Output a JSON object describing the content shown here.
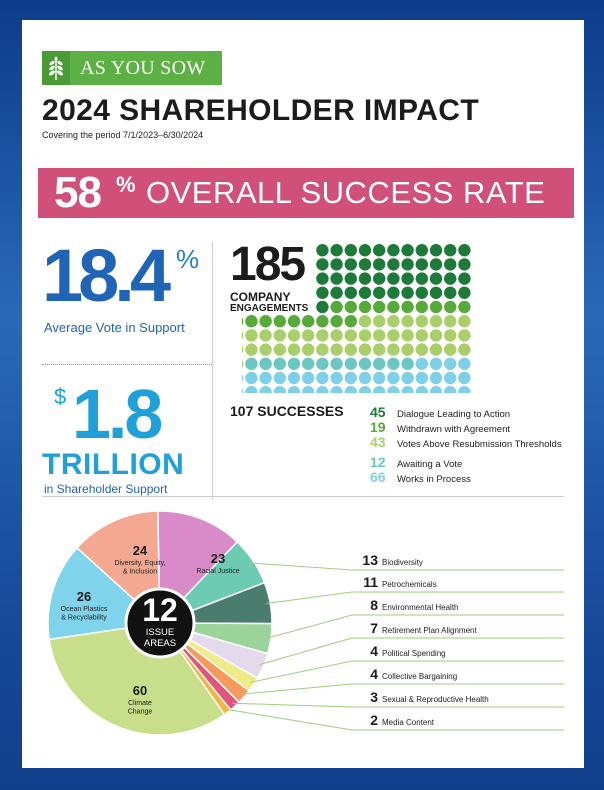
{
  "logo": {
    "text": "AS YOU SOW"
  },
  "header": {
    "title": "2024 SHAREHOLDER IMPACT",
    "subtitle": "Covering the period 7/1/2023–6/30/2024"
  },
  "banner": {
    "value": "58",
    "pct_sign": "%",
    "label": "OVERALL SUCCESS RATE"
  },
  "vote": {
    "value": "18.4",
    "pct_sign": "%",
    "label": "Average Vote in Support"
  },
  "support": {
    "dollar": "$",
    "value": "1.8",
    "unit": "TRILLION",
    "label": "in Shareholder Support"
  },
  "engagements": {
    "value": "185",
    "label1": "COMPANY",
    "label2": "ENGAGEMENTS"
  },
  "successes": {
    "label": "107 SUCCESSES"
  },
  "outcomes": [
    {
      "n": "45",
      "label": "Dialogue Leading to Action",
      "color": "#1e7a3a"
    },
    {
      "n": "19",
      "label": "Withdrawn with Agreement",
      "color": "#58a93c"
    },
    {
      "n": "43",
      "label": "Votes Above Resubmission Thresholds",
      "color": "#a9cf6a"
    },
    {
      "n": "12",
      "label": "Awaiting a Vote",
      "color": "#6cc7c2"
    },
    {
      "n": "66",
      "label": "Works in Process",
      "color": "#7fcfe9"
    }
  ],
  "pie_center": {
    "value": "12",
    "line1": "ISSUE",
    "line2": "AREAS"
  },
  "chart_data": {
    "type": "pie",
    "slices": [
      {
        "label": "Climate Change",
        "value": 60,
        "color": "#c7df8a"
      },
      {
        "label": "Ocean Plastics & Recyclability",
        "value": 26,
        "color": "#7fd4ec"
      },
      {
        "label": "Diversity, Equity, & Inclusion",
        "value": 24,
        "color": "#f4a892"
      },
      {
        "label": "Racial Justice",
        "value": 23,
        "color": "#d98ac8"
      },
      {
        "label": "Biodiversity",
        "value": 13,
        "color": "#6dcbb4"
      },
      {
        "label": "Petrochemicals",
        "value": 11,
        "color": "#4b7d6e"
      },
      {
        "label": "Environmental Health",
        "value": 8,
        "color": "#9bd49a"
      },
      {
        "label": "Retirement Plan Alignment",
        "value": 7,
        "color": "#e5daec"
      },
      {
        "label": "Political Spending",
        "value": 4,
        "color": "#f0ea88"
      },
      {
        "label": "Collective Bargaining",
        "value": 4,
        "color": "#f59a5a"
      },
      {
        "label": "Sexual & Reproductive Health",
        "value": 3,
        "color": "#e2547a"
      },
      {
        "label": "Media Content",
        "value": 2,
        "color": "#f5b441"
      }
    ],
    "inside_labels": [
      {
        "n": "60",
        "text": [
          "Climate",
          "Change"
        ]
      },
      {
        "n": "26",
        "text": [
          "Ocean Plastics",
          "& Recyclability"
        ]
      },
      {
        "n": "24",
        "text": [
          "Diversity, Equity,",
          "& Inclusion"
        ]
      },
      {
        "n": "23",
        "text": [
          "Racial Justice"
        ]
      }
    ],
    "outside_labels": [
      {
        "n": "13",
        "label": "Biodiversity"
      },
      {
        "n": "11",
        "label": "Petrochemicals"
      },
      {
        "n": "8",
        "label": "Environmental Health"
      },
      {
        "n": "7",
        "label": "Retirement Plan Alignment"
      },
      {
        "n": "4",
        "label": "Political Spending"
      },
      {
        "n": "4",
        "label": "Collective Bargaining"
      },
      {
        "n": "3",
        "label": "Sexual & Reproductive Health"
      },
      {
        "n": "2",
        "label": "Media Content"
      }
    ]
  },
  "colors": {
    "banner": "#d1507a",
    "blue": "#1f64b5",
    "lightblue": "#1fa0d8",
    "green": "#5db043"
  }
}
